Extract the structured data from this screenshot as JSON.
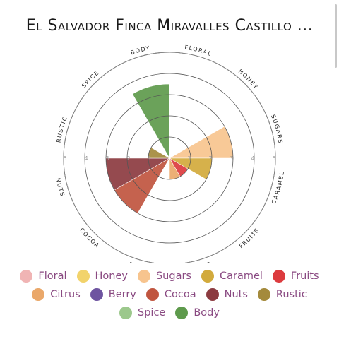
{
  "header": {
    "title": "El Salvador Finca Miravalles Castillo ..."
  },
  "chart_data": {
    "type": "polar-bar",
    "title": "El Salvador Finca Miravalles Castillo ...",
    "rlim": [
      0,
      5
    ],
    "tick_labels": [
      "1",
      "2",
      "3",
      "4",
      "5"
    ],
    "categories": [
      "Floral",
      "Honey",
      "Sugars",
      "Caramel",
      "Fruits",
      "Citrus",
      "Berry",
      "Cocoa",
      "Nuts",
      "Rustic",
      "Spice",
      "Body"
    ],
    "axis_labels": [
      "FLORAL",
      "HONEY",
      "SUGARS",
      "CARAMEL",
      "FRUITS",
      "CITRUS",
      "BERRY",
      "COCOA",
      "NUTS",
      "RUSTIC",
      "SPICE",
      "BODY"
    ],
    "values": [
      0,
      0,
      3,
      2,
      1,
      1,
      0,
      3,
      3,
      1,
      0,
      3.5
    ],
    "colors": [
      "#f0b4b4",
      "#f2d36b",
      "#f7c48e",
      "#d2aa3c",
      "#dc3b3e",
      "#eaa86a",
      "#6e54a0",
      "#c0553f",
      "#8c3b40",
      "#a48a3c",
      "#9cc88c",
      "#5e9a4c"
    ],
    "legend_position": "bottom"
  }
}
